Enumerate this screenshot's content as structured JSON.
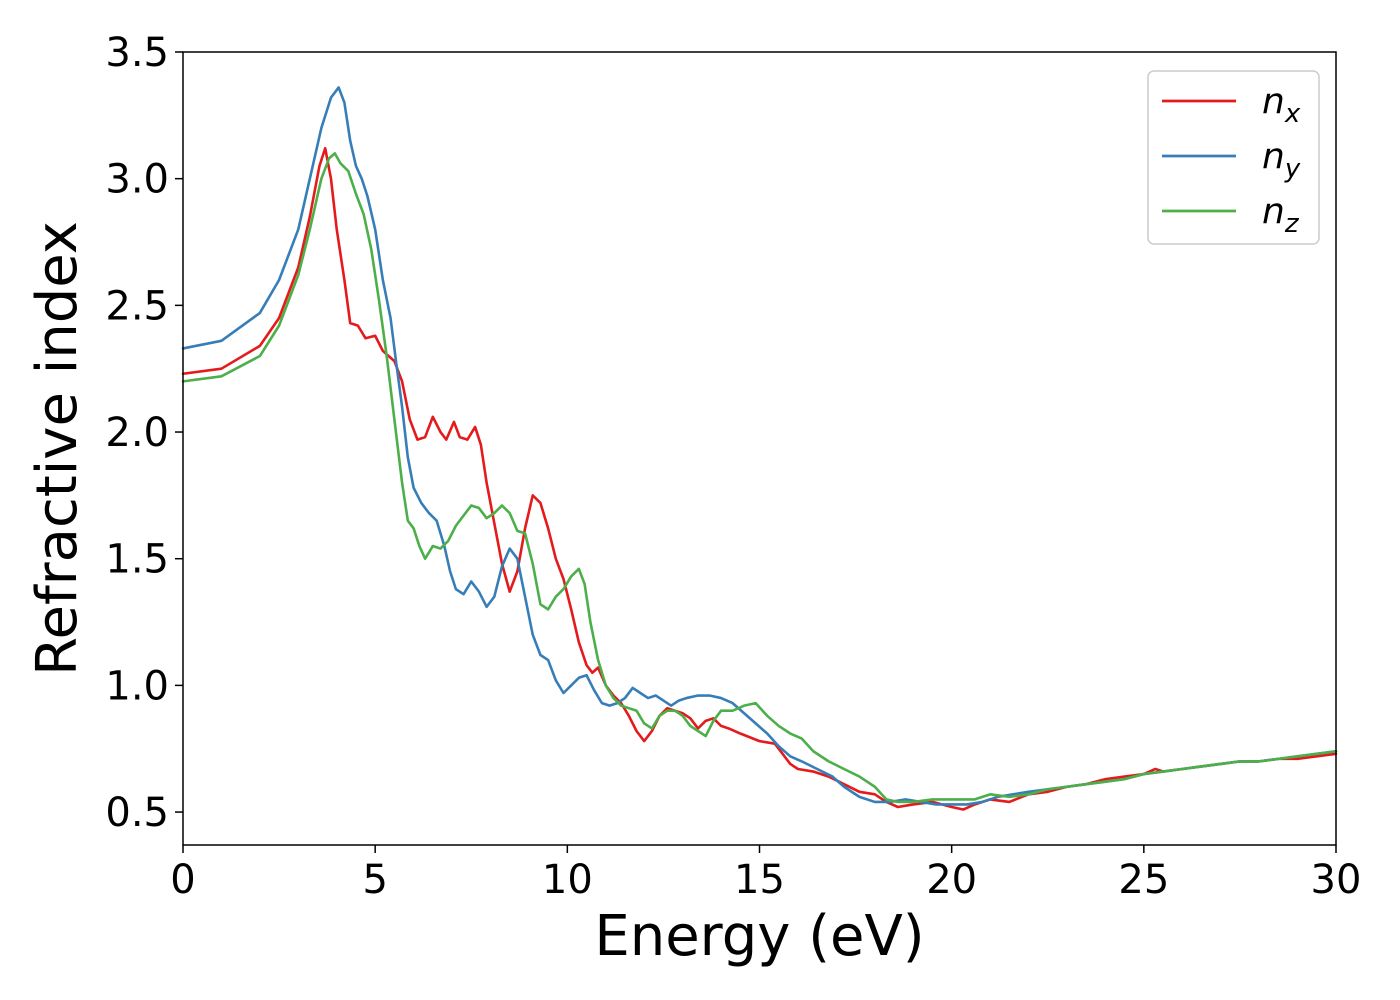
{
  "chart_data": {
    "type": "line",
    "xlabel": "Energy (eV)",
    "ylabel": "Refractive index",
    "xlim": [
      0,
      30
    ],
    "ylim": [
      0.37,
      3.5
    ],
    "xticks": [
      0,
      5,
      10,
      15,
      20,
      25,
      30
    ],
    "xtick_labels": [
      "0",
      "5",
      "10",
      "15",
      "20",
      "25",
      "30"
    ],
    "yticks": [
      0.5,
      1.0,
      1.5,
      2.0,
      2.5,
      3.0,
      3.5
    ],
    "ytick_labels": [
      "0.5",
      "1.0",
      "1.5",
      "2.0",
      "2.5",
      "3.0",
      "3.5"
    ],
    "grid": false,
    "legend_position": "top-right",
    "series": [
      {
        "name": "n",
        "subscript": "x",
        "color": "#e41a1c",
        "points": [
          [
            0,
            2.23
          ],
          [
            1,
            2.25
          ],
          [
            2,
            2.34
          ],
          [
            2.5,
            2.45
          ],
          [
            3,
            2.65
          ],
          [
            3.3,
            2.85
          ],
          [
            3.55,
            3.05
          ],
          [
            3.7,
            3.12
          ],
          [
            3.85,
            3.0
          ],
          [
            4.0,
            2.8
          ],
          [
            4.2,
            2.6
          ],
          [
            4.35,
            2.43
          ],
          [
            4.55,
            2.42
          ],
          [
            4.75,
            2.37
          ],
          [
            5.0,
            2.38
          ],
          [
            5.2,
            2.32
          ],
          [
            5.5,
            2.28
          ],
          [
            5.7,
            2.2
          ],
          [
            5.9,
            2.05
          ],
          [
            6.1,
            1.97
          ],
          [
            6.3,
            1.98
          ],
          [
            6.5,
            2.06
          ],
          [
            6.7,
            2.0
          ],
          [
            6.85,
            1.97
          ],
          [
            7.05,
            2.04
          ],
          [
            7.2,
            1.98
          ],
          [
            7.4,
            1.97
          ],
          [
            7.6,
            2.02
          ],
          [
            7.75,
            1.95
          ],
          [
            7.9,
            1.8
          ],
          [
            8.1,
            1.64
          ],
          [
            8.3,
            1.48
          ],
          [
            8.5,
            1.37
          ],
          [
            8.7,
            1.45
          ],
          [
            8.9,
            1.62
          ],
          [
            9.1,
            1.75
          ],
          [
            9.3,
            1.72
          ],
          [
            9.5,
            1.62
          ],
          [
            9.7,
            1.5
          ],
          [
            9.9,
            1.42
          ],
          [
            10.1,
            1.3
          ],
          [
            10.3,
            1.17
          ],
          [
            10.5,
            1.08
          ],
          [
            10.65,
            1.05
          ],
          [
            10.8,
            1.07
          ],
          [
            11.0,
            1.0
          ],
          [
            11.2,
            0.96
          ],
          [
            11.4,
            0.93
          ],
          [
            11.6,
            0.88
          ],
          [
            11.8,
            0.82
          ],
          [
            12.0,
            0.78
          ],
          [
            12.2,
            0.82
          ],
          [
            12.4,
            0.88
          ],
          [
            12.6,
            0.91
          ],
          [
            12.8,
            0.9
          ],
          [
            13.0,
            0.89
          ],
          [
            13.2,
            0.87
          ],
          [
            13.4,
            0.83
          ],
          [
            13.6,
            0.86
          ],
          [
            13.8,
            0.87
          ],
          [
            14.0,
            0.84
          ],
          [
            14.2,
            0.83
          ],
          [
            14.5,
            0.81
          ],
          [
            15.0,
            0.78
          ],
          [
            15.4,
            0.77
          ],
          [
            15.6,
            0.73
          ],
          [
            15.8,
            0.69
          ],
          [
            16.0,
            0.67
          ],
          [
            16.4,
            0.66
          ],
          [
            16.8,
            0.64
          ],
          [
            17.2,
            0.61
          ],
          [
            17.6,
            0.58
          ],
          [
            18.0,
            0.57
          ],
          [
            18.3,
            0.54
          ],
          [
            18.6,
            0.52
          ],
          [
            19.0,
            0.53
          ],
          [
            19.5,
            0.54
          ],
          [
            20.0,
            0.52
          ],
          [
            20.3,
            0.51
          ],
          [
            20.6,
            0.53
          ],
          [
            21.0,
            0.55
          ],
          [
            21.5,
            0.54
          ],
          [
            22.0,
            0.57
          ],
          [
            22.5,
            0.58
          ],
          [
            23.0,
            0.6
          ],
          [
            23.5,
            0.61
          ],
          [
            24.0,
            0.63
          ],
          [
            24.5,
            0.64
          ],
          [
            25.0,
            0.65
          ],
          [
            25.3,
            0.67
          ],
          [
            25.5,
            0.66
          ],
          [
            26.0,
            0.67
          ],
          [
            26.5,
            0.68
          ],
          [
            27.0,
            0.69
          ],
          [
            27.5,
            0.7
          ],
          [
            28.0,
            0.7
          ],
          [
            28.5,
            0.71
          ],
          [
            29.0,
            0.71
          ],
          [
            29.5,
            0.72
          ],
          [
            30.0,
            0.73
          ]
        ]
      },
      {
        "name": "n",
        "subscript": "y",
        "color": "#377eb8",
        "points": [
          [
            0,
            2.33
          ],
          [
            1,
            2.36
          ],
          [
            2,
            2.47
          ],
          [
            2.5,
            2.6
          ],
          [
            3,
            2.8
          ],
          [
            3.3,
            3.0
          ],
          [
            3.6,
            3.2
          ],
          [
            3.85,
            3.32
          ],
          [
            4.05,
            3.36
          ],
          [
            4.2,
            3.3
          ],
          [
            4.35,
            3.15
          ],
          [
            4.5,
            3.05
          ],
          [
            4.65,
            3.0
          ],
          [
            4.8,
            2.93
          ],
          [
            5.0,
            2.8
          ],
          [
            5.2,
            2.6
          ],
          [
            5.4,
            2.45
          ],
          [
            5.55,
            2.27
          ],
          [
            5.7,
            2.1
          ],
          [
            5.85,
            1.9
          ],
          [
            6.0,
            1.78
          ],
          [
            6.2,
            1.72
          ],
          [
            6.4,
            1.68
          ],
          [
            6.6,
            1.65
          ],
          [
            6.8,
            1.55
          ],
          [
            6.95,
            1.45
          ],
          [
            7.1,
            1.38
          ],
          [
            7.3,
            1.36
          ],
          [
            7.5,
            1.41
          ],
          [
            7.7,
            1.37
          ],
          [
            7.9,
            1.31
          ],
          [
            8.1,
            1.35
          ],
          [
            8.3,
            1.47
          ],
          [
            8.5,
            1.54
          ],
          [
            8.7,
            1.5
          ],
          [
            8.9,
            1.35
          ],
          [
            9.1,
            1.2
          ],
          [
            9.3,
            1.12
          ],
          [
            9.5,
            1.1
          ],
          [
            9.7,
            1.02
          ],
          [
            9.9,
            0.97
          ],
          [
            10.1,
            1.0
          ],
          [
            10.3,
            1.03
          ],
          [
            10.5,
            1.04
          ],
          [
            10.7,
            0.98
          ],
          [
            10.9,
            0.93
          ],
          [
            11.1,
            0.92
          ],
          [
            11.3,
            0.93
          ],
          [
            11.5,
            0.95
          ],
          [
            11.7,
            0.99
          ],
          [
            11.9,
            0.97
          ],
          [
            12.1,
            0.95
          ],
          [
            12.3,
            0.96
          ],
          [
            12.5,
            0.94
          ],
          [
            12.7,
            0.92
          ],
          [
            12.9,
            0.94
          ],
          [
            13.1,
            0.95
          ],
          [
            13.4,
            0.96
          ],
          [
            13.7,
            0.96
          ],
          [
            14.0,
            0.95
          ],
          [
            14.3,
            0.93
          ],
          [
            14.6,
            0.89
          ],
          [
            14.9,
            0.85
          ],
          [
            15.2,
            0.81
          ],
          [
            15.5,
            0.76
          ],
          [
            15.8,
            0.72
          ],
          [
            16.1,
            0.7
          ],
          [
            16.5,
            0.67
          ],
          [
            16.9,
            0.64
          ],
          [
            17.2,
            0.6
          ],
          [
            17.6,
            0.56
          ],
          [
            18.0,
            0.54
          ],
          [
            18.4,
            0.54
          ],
          [
            18.8,
            0.55
          ],
          [
            19.2,
            0.54
          ],
          [
            19.6,
            0.53
          ],
          [
            20.0,
            0.53
          ],
          [
            20.4,
            0.53
          ],
          [
            20.8,
            0.54
          ],
          [
            21.2,
            0.56
          ],
          [
            21.6,
            0.57
          ],
          [
            22.0,
            0.58
          ],
          [
            22.5,
            0.59
          ],
          [
            23.0,
            0.6
          ],
          [
            23.5,
            0.61
          ],
          [
            24.0,
            0.62
          ],
          [
            24.5,
            0.63
          ],
          [
            25.0,
            0.65
          ],
          [
            25.5,
            0.66
          ],
          [
            26.0,
            0.67
          ],
          [
            26.5,
            0.68
          ],
          [
            27.0,
            0.69
          ],
          [
            27.5,
            0.7
          ],
          [
            28.0,
            0.7
          ],
          [
            28.5,
            0.71
          ],
          [
            29.0,
            0.72
          ],
          [
            29.5,
            0.73
          ],
          [
            30.0,
            0.74
          ]
        ]
      },
      {
        "name": "n",
        "subscript": "z",
        "color": "#4daf4a",
        "points": [
          [
            0,
            2.2
          ],
          [
            1,
            2.22
          ],
          [
            2,
            2.3
          ],
          [
            2.5,
            2.42
          ],
          [
            3,
            2.62
          ],
          [
            3.3,
            2.8
          ],
          [
            3.6,
            3.0
          ],
          [
            3.8,
            3.08
          ],
          [
            3.95,
            3.1
          ],
          [
            4.1,
            3.06
          ],
          [
            4.3,
            3.03
          ],
          [
            4.5,
            2.94
          ],
          [
            4.7,
            2.86
          ],
          [
            4.9,
            2.72
          ],
          [
            5.1,
            2.52
          ],
          [
            5.3,
            2.3
          ],
          [
            5.5,
            2.05
          ],
          [
            5.7,
            1.8
          ],
          [
            5.85,
            1.65
          ],
          [
            6.0,
            1.62
          ],
          [
            6.15,
            1.55
          ],
          [
            6.3,
            1.5
          ],
          [
            6.5,
            1.55
          ],
          [
            6.7,
            1.54
          ],
          [
            6.9,
            1.57
          ],
          [
            7.1,
            1.63
          ],
          [
            7.3,
            1.67
          ],
          [
            7.5,
            1.71
          ],
          [
            7.7,
            1.7
          ],
          [
            7.9,
            1.66
          ],
          [
            8.1,
            1.68
          ],
          [
            8.3,
            1.71
          ],
          [
            8.5,
            1.68
          ],
          [
            8.7,
            1.61
          ],
          [
            8.9,
            1.6
          ],
          [
            9.1,
            1.48
          ],
          [
            9.3,
            1.32
          ],
          [
            9.5,
            1.3
          ],
          [
            9.7,
            1.35
          ],
          [
            9.9,
            1.38
          ],
          [
            10.1,
            1.43
          ],
          [
            10.3,
            1.46
          ],
          [
            10.45,
            1.4
          ],
          [
            10.6,
            1.25
          ],
          [
            10.8,
            1.1
          ],
          [
            11.0,
            1.0
          ],
          [
            11.2,
            0.95
          ],
          [
            11.4,
            0.92
          ],
          [
            11.6,
            0.91
          ],
          [
            11.8,
            0.9
          ],
          [
            12.0,
            0.85
          ],
          [
            12.2,
            0.83
          ],
          [
            12.4,
            0.88
          ],
          [
            12.6,
            0.9
          ],
          [
            12.8,
            0.9
          ],
          [
            13.0,
            0.88
          ],
          [
            13.2,
            0.84
          ],
          [
            13.4,
            0.82
          ],
          [
            13.6,
            0.8
          ],
          [
            13.8,
            0.86
          ],
          [
            14.0,
            0.9
          ],
          [
            14.3,
            0.9
          ],
          [
            14.6,
            0.92
          ],
          [
            14.9,
            0.93
          ],
          [
            15.2,
            0.88
          ],
          [
            15.5,
            0.84
          ],
          [
            15.8,
            0.81
          ],
          [
            16.1,
            0.79
          ],
          [
            16.4,
            0.74
          ],
          [
            16.8,
            0.7
          ],
          [
            17.2,
            0.67
          ],
          [
            17.6,
            0.64
          ],
          [
            18.0,
            0.6
          ],
          [
            18.3,
            0.55
          ],
          [
            18.6,
            0.54
          ],
          [
            19.0,
            0.54
          ],
          [
            19.5,
            0.55
          ],
          [
            20.0,
            0.55
          ],
          [
            20.3,
            0.55
          ],
          [
            20.6,
            0.55
          ],
          [
            21.0,
            0.57
          ],
          [
            21.5,
            0.56
          ],
          [
            22.0,
            0.57
          ],
          [
            22.5,
            0.59
          ],
          [
            23.0,
            0.6
          ],
          [
            23.5,
            0.61
          ],
          [
            24.0,
            0.62
          ],
          [
            24.5,
            0.63
          ],
          [
            25.0,
            0.65
          ],
          [
            25.5,
            0.66
          ],
          [
            26.0,
            0.67
          ],
          [
            26.5,
            0.68
          ],
          [
            27.0,
            0.69
          ],
          [
            27.5,
            0.7
          ],
          [
            28.0,
            0.7
          ],
          [
            28.5,
            0.71
          ],
          [
            29.0,
            0.72
          ],
          [
            29.5,
            0.73
          ],
          [
            30.0,
            0.74
          ]
        ]
      }
    ]
  }
}
